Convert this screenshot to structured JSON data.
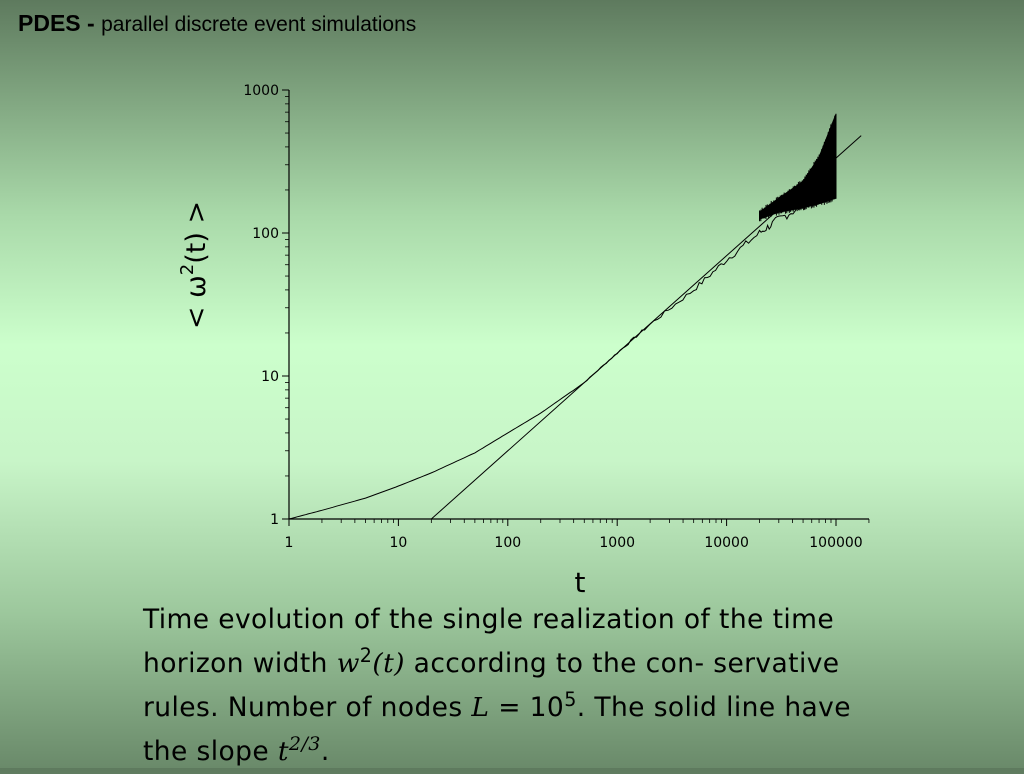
{
  "header": {
    "acronym": "PDES",
    "separator": "-",
    "subtitle": "parallel discrete event simulations"
  },
  "chart_data": {
    "type": "line",
    "xlabel": "t",
    "ylabel": {
      "prefix": "< ω",
      "power": "2",
      "suffix": "(t) >"
    },
    "xscale": "log",
    "yscale": "log",
    "xlim": [
      1,
      100000
    ],
    "ylim": [
      1,
      1000
    ],
    "xticks": [
      1,
      10,
      100,
      1000,
      10000,
      100000
    ],
    "xtick_labels": [
      "1",
      "10",
      "100",
      "1000",
      "10000",
      "100000"
    ],
    "yticks": [
      1,
      10,
      100,
      1000
    ],
    "ytick_labels": [
      "1",
      "10",
      "100",
      "1000"
    ],
    "grid": false,
    "series": [
      {
        "style": "fluctuating",
        "x": [
          1,
          2,
          5,
          10,
          20,
          50,
          100,
          200,
          500,
          1000,
          2000,
          5000,
          10000,
          20000,
          30000,
          50000,
          70000,
          100000
        ],
        "y": [
          1.0,
          1.15,
          1.4,
          1.7,
          2.1,
          2.9,
          4.0,
          5.5,
          9.0,
          14.5,
          23,
          40,
          65,
          100,
          125,
          155,
          185,
          230
        ],
        "band_low": [
          125,
          140,
          150,
          160,
          175
        ],
        "band_high": [
          140,
          175,
          230,
          340,
          680
        ],
        "band_x": [
          20000,
          30000,
          50000,
          70000,
          100000
        ]
      },
      {
        "style": "reference",
        "x": [
          20,
          170000
        ],
        "y": [
          1.0,
          480
        ]
      }
    ]
  },
  "caption": {
    "t1": "Time evolution of the single realization of the time horizon width ",
    "w": "w",
    "w_exp": "2",
    "w_arg": "(t)",
    "t2": " according to the con- servative rules.  Number of nodes ",
    "L": "L",
    "eq": " = 10",
    "L_exp": "5",
    "t3": ". The solid line have the slope ",
    "tvar": "t",
    "slope_exp": "2/3",
    "t4": "."
  }
}
